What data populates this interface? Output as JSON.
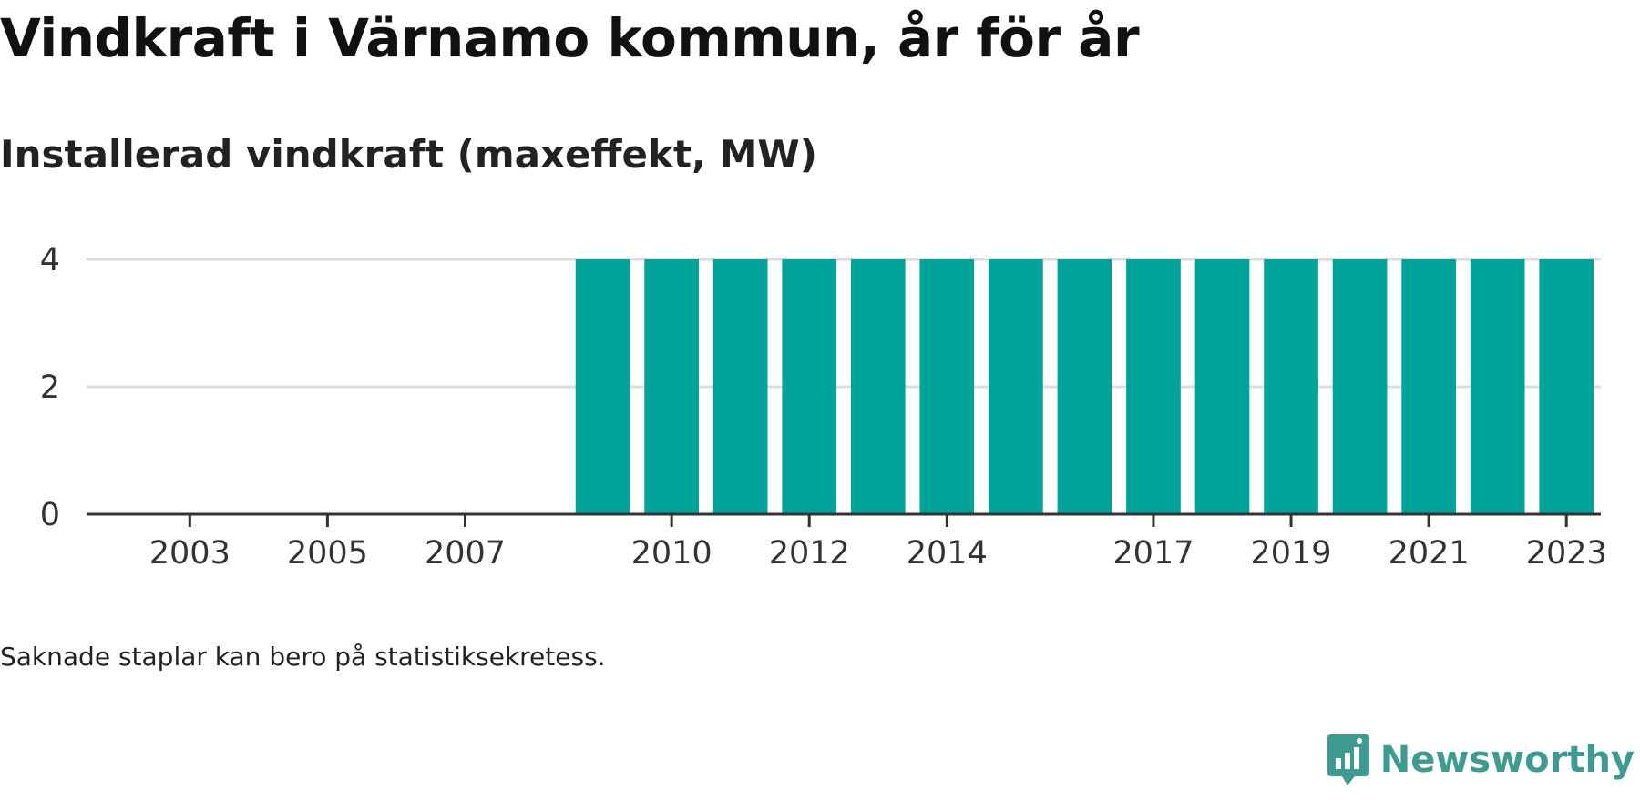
{
  "title": "Vindkraft i Värnamo kommun, år för år",
  "subtitle": "Installerad vindkraft (maxeffekt, MW)",
  "note": "Saknade staplar kan bero på statistiksekretess.",
  "brand": {
    "name": "Newsworthy",
    "icon": "newsworthy-logo-icon",
    "color": "#3f9a92"
  },
  "colors": {
    "bar": "#00a39a",
    "grid": "#dddddd",
    "axis": "#333333"
  },
  "chart_data": {
    "type": "bar",
    "categories": [
      "2002",
      "2003",
      "2004",
      "2005",
      "2006",
      "2007",
      "2008",
      "2009",
      "2010",
      "2011",
      "2012",
      "2013",
      "2014",
      "2015",
      "2016",
      "2017",
      "2018",
      "2019",
      "2020",
      "2021",
      "2022",
      "2023"
    ],
    "values": [
      0,
      0,
      0,
      0,
      0,
      0,
      0,
      4,
      4,
      4,
      4,
      4,
      4,
      4,
      4,
      4,
      4,
      4,
      4,
      4,
      4,
      4
    ],
    "x_tick_labels": [
      "2003",
      "2005",
      "2007",
      "2010",
      "2012",
      "2014",
      "2017",
      "2019",
      "2021",
      "2023"
    ],
    "y_ticks": [
      0,
      2,
      4
    ],
    "ylim": [
      0,
      4
    ],
    "xlabel": "",
    "ylabel": "",
    "grid": true
  }
}
